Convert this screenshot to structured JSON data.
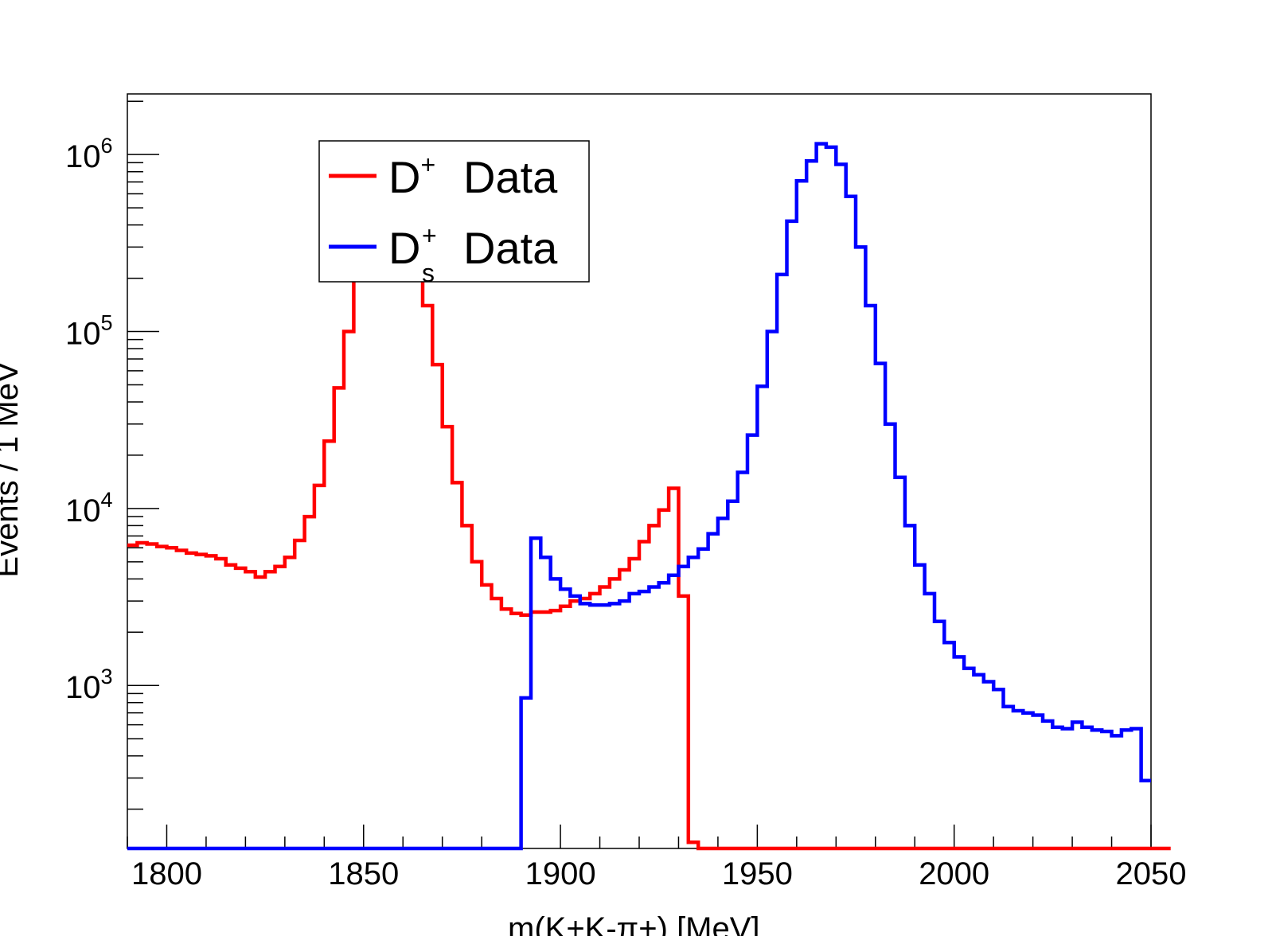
{
  "chart_data": {
    "type": "line",
    "step": true,
    "title": "",
    "xlabel": "m(K+K-π+) [MeV]",
    "ylabel": "Events / 1 MeV",
    "xlim": [
      1790,
      2050
    ],
    "ylim": [
      120,
      2200000
    ],
    "y_scale": "log",
    "grid": false,
    "legend_position": "top-left",
    "x_ticks": [
      "1800",
      "1850",
      "1900",
      "1950",
      "2000",
      "2050"
    ],
    "y_ticks": [
      {
        "value": 1000,
        "base": "10",
        "exp": "3"
      },
      {
        "value": 10000,
        "base": "10",
        "exp": "4"
      },
      {
        "value": 100000,
        "base": "10",
        "exp": "5"
      },
      {
        "value": 1000000,
        "base": "10",
        "exp": "6"
      }
    ],
    "bin_width": 2.5,
    "series": [
      {
        "name": "D+ Data",
        "legend_main": "D",
        "legend_sup": "+",
        "legend_sub": "",
        "legend_text": "Data",
        "color": "#ff0000",
        "x_start": 1790,
        "values": [
          6200,
          6400,
          6300,
          6100,
          6000,
          5800,
          5600,
          5500,
          5400,
          5200,
          4800,
          4600,
          4400,
          4100,
          4400,
          4700,
          5300,
          6600,
          9000,
          13500,
          24000,
          48000,
          100000,
          280000,
          600000,
          900000,
          1000000,
          950000,
          700000,
          350000,
          140000,
          65000,
          29000,
          14000,
          8000,
          5000,
          3700,
          3100,
          2700,
          2550,
          2500,
          2600,
          2600,
          2650,
          2800,
          3000,
          3100,
          3300,
          3600,
          4000,
          4500,
          5200,
          6500,
          8000,
          9800,
          13000,
          3200,
          130,
          120,
          120,
          120,
          120,
          120,
          120,
          120,
          120,
          120,
          120,
          120,
          120,
          120,
          120,
          120,
          120,
          120,
          120,
          120,
          120,
          120,
          120,
          120,
          120,
          120,
          120,
          120,
          120,
          120,
          120,
          120,
          120,
          120,
          120,
          120,
          120,
          120,
          120,
          120,
          120,
          120,
          120,
          120,
          120,
          120,
          120,
          120,
          120
        ]
      },
      {
        "name": "Ds+ Data",
        "legend_main": "D",
        "legend_sup": "+",
        "legend_sub": "s",
        "legend_text": "Data",
        "color": "#0000ff",
        "x_start": 1790,
        "values": [
          120,
          120,
          120,
          120,
          120,
          120,
          120,
          120,
          120,
          120,
          120,
          120,
          120,
          120,
          120,
          120,
          120,
          120,
          120,
          120,
          120,
          120,
          120,
          120,
          120,
          120,
          120,
          120,
          120,
          120,
          120,
          120,
          120,
          120,
          120,
          120,
          120,
          120,
          120,
          120,
          850,
          6800,
          5300,
          4000,
          3500,
          3200,
          2900,
          2850,
          2850,
          2900,
          3000,
          3300,
          3400,
          3600,
          3800,
          4200,
          4700,
          5300,
          5900,
          7200,
          8800,
          11000,
          16000,
          26000,
          49000,
          100000,
          210000,
          420000,
          710000,
          920000,
          1150000,
          1100000,
          880000,
          580000,
          300000,
          140000,
          66000,
          30000,
          15000,
          8000,
          4800,
          3300,
          2300,
          1750,
          1450,
          1250,
          1150,
          1050,
          950,
          760,
          720,
          700,
          680,
          630,
          580,
          570,
          620,
          580,
          560,
          550,
          520,
          560,
          570,
          290
        ]
      }
    ]
  }
}
